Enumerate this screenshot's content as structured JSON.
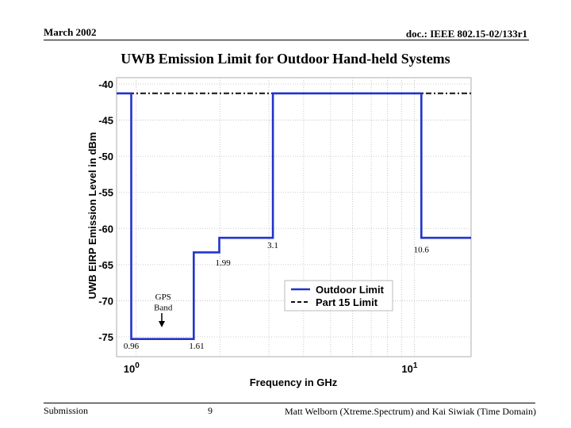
{
  "header": {
    "date": "March 2002",
    "doc": "doc.: IEEE 802.15-02/133r1"
  },
  "slide": {
    "title": "UWB Emission Limit for Outdoor Hand-held Systems"
  },
  "footer": {
    "left": "Submission",
    "page": "9",
    "right": "Matt Welborn (Xtreme.Spectrum) and Kai Siwiak (Time Domain)"
  },
  "chart_data": {
    "type": "line",
    "x_scale": "log",
    "xlim": [
      0.85,
      16
    ],
    "ylim": [
      -75,
      -40
    ],
    "xlabel": "Frequency in GHz",
    "ylabel": "UWB EIRP Emission Level in dBm",
    "x_ticks": [
      {
        "value": 1,
        "label": "10",
        "exp": "0"
      },
      {
        "value": 10,
        "label": "10",
        "exp": "1"
      }
    ],
    "y_ticks": [
      -40,
      -45,
      -50,
      -55,
      -60,
      -65,
      -70,
      -75
    ],
    "grid": true,
    "legend_position": "lower-right",
    "series": [
      {
        "name": "Outdoor Limit",
        "style": "solid",
        "color": "#2233cc",
        "points": [
          [
            0.85,
            -41.3
          ],
          [
            0.96,
            -41.3
          ],
          [
            0.96,
            -75.3
          ],
          [
            1.61,
            -75.3
          ],
          [
            1.61,
            -63.3
          ],
          [
            1.99,
            -63.3
          ],
          [
            1.99,
            -61.3
          ],
          [
            3.1,
            -61.3
          ],
          [
            3.1,
            -41.3
          ],
          [
            10.6,
            -41.3
          ],
          [
            10.6,
            -61.3
          ],
          [
            16,
            -61.3
          ]
        ]
      },
      {
        "name": "Part 15 Limit",
        "style": "dashdot",
        "color": "#111111",
        "points": [
          [
            0.85,
            -41.3
          ],
          [
            16,
            -41.3
          ]
        ]
      }
    ],
    "annotations": [
      {
        "text": "3.1",
        "x": 3.1,
        "y": -62.3
      },
      {
        "text": "10.6",
        "x": 10.6,
        "y": -62.9
      },
      {
        "text": "1.99",
        "x": 2.05,
        "y": -64.7
      },
      {
        "text": "0.96",
        "x": 0.96,
        "y": -76.2
      },
      {
        "text": "1.61",
        "x": 1.65,
        "y": -76.2
      },
      {
        "text": "GPS",
        "x": 1.25,
        "y": -69.4
      },
      {
        "text": "Band",
        "x": 1.25,
        "y": -70.9
      }
    ]
  }
}
